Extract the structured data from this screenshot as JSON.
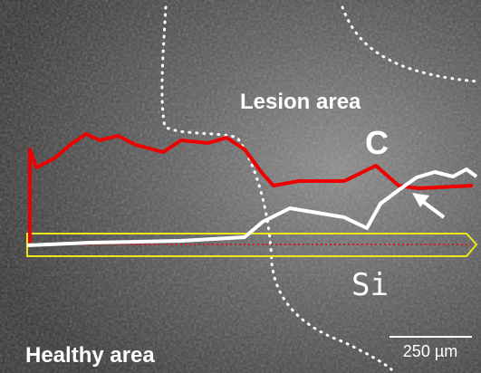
{
  "image": {
    "labels": {
      "lesion": "Lesion area",
      "carbon": "C",
      "silicon": "Si",
      "healthy": "Healthy area"
    },
    "scale_bar": "250 µm"
  }
}
